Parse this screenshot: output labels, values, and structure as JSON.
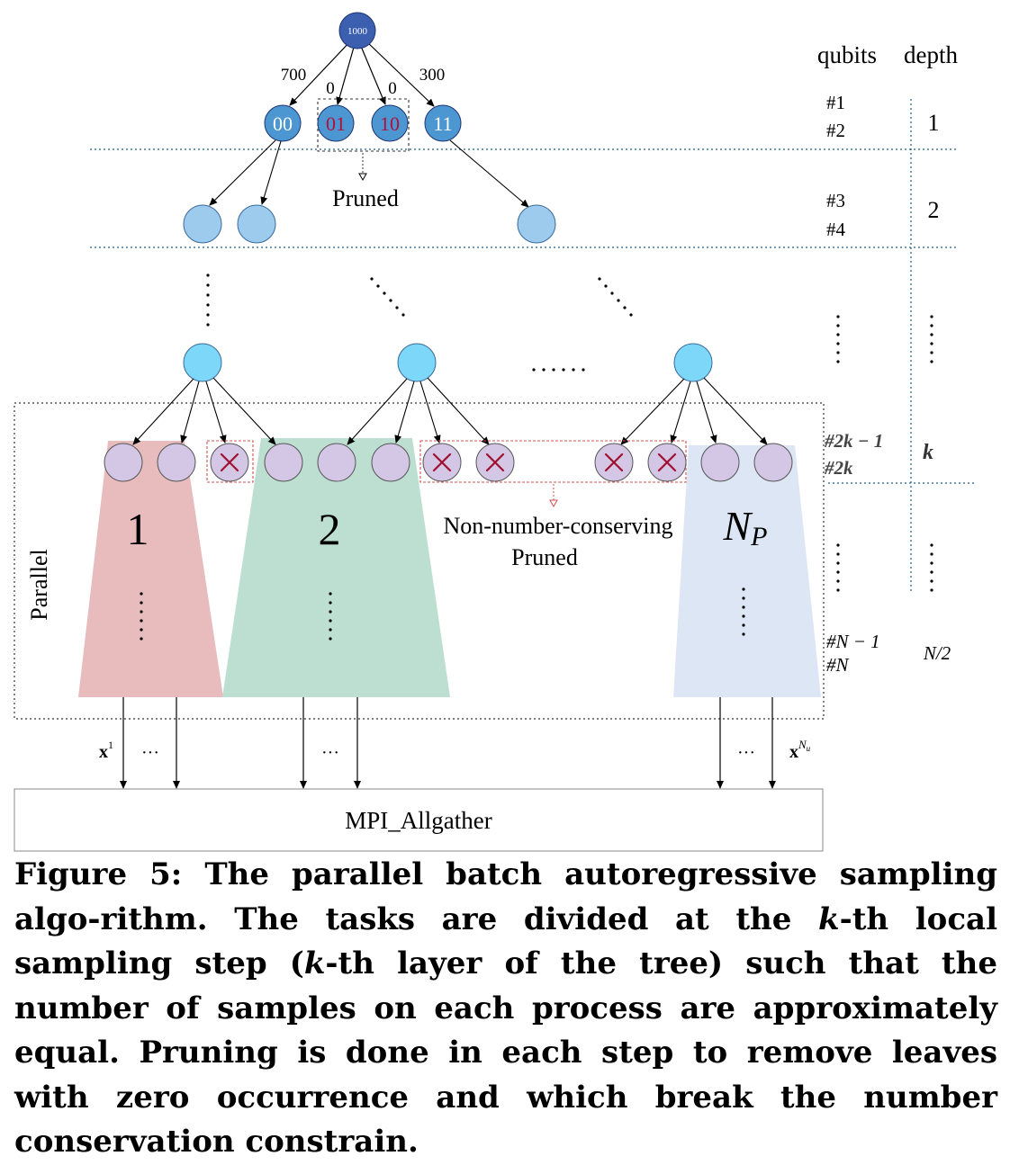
{
  "root": {
    "label": "1000"
  },
  "edges_top": [
    "700",
    "0",
    "0",
    "300"
  ],
  "level1_nodes": [
    {
      "label": "00",
      "pruned": false
    },
    {
      "label": "01",
      "pruned": true
    },
    {
      "label": "10",
      "pruned": true
    },
    {
      "label": "11",
      "pruned": false
    }
  ],
  "pruned_label": "Pruned",
  "headers": {
    "qubits": "qubits",
    "depth": "depth"
  },
  "qubit_rows": [
    {
      "lines": [
        "#1",
        "#2"
      ],
      "depth": "1"
    },
    {
      "lines": [
        "#3",
        "#4"
      ],
      "depth": "2"
    },
    {
      "lines": [
        "#2k − 1",
        "#2k"
      ],
      "depth": "k"
    },
    {
      "lines": [
        "#N − 1",
        "#N"
      ],
      "depth": "N/2"
    }
  ],
  "ellipsis": "......",
  "partitions": [
    {
      "label": "1",
      "color": "#e8bcbd"
    },
    {
      "label": "2",
      "color": "#bddfd2"
    },
    {
      "label": "N",
      "sub": "P",
      "color": "#dde6f5"
    }
  ],
  "nonconserving_label": [
    "Non-number-conserving",
    "Pruned"
  ],
  "parallel_label": "Parallel",
  "outputs": {
    "first": "x",
    "first_sup": "1",
    "last": "x",
    "last_sup": "N",
    "last_sup_sub": "u",
    "dots": "···"
  },
  "mpi_label": "MPI_Allgather",
  "caption": {
    "prefix": "Figure 5: The parallel batch autoregressive sampling algo-rithm. The tasks are divided at the ",
    "k1": "k",
    "mid1": "-th local sampling step (",
    "k2": "k",
    "suffix": "-th layer of the tree) such that the number of samples on each process are approximately equal. Pruning is done in each step to remove leaves with zero occurrence and which break the number conservation constrain."
  },
  "colors": {
    "root_fill": "#3c5fb0",
    "level1_fill": "#4c96d2",
    "level2_fill": "#9ccbee",
    "level3_fill": "#7dd7f8",
    "leaf_fill": "#d4c7e6",
    "pruned_text": "#b0103a",
    "pruned_box": "#d05050",
    "dotted_line": "#1f5f8b"
  }
}
